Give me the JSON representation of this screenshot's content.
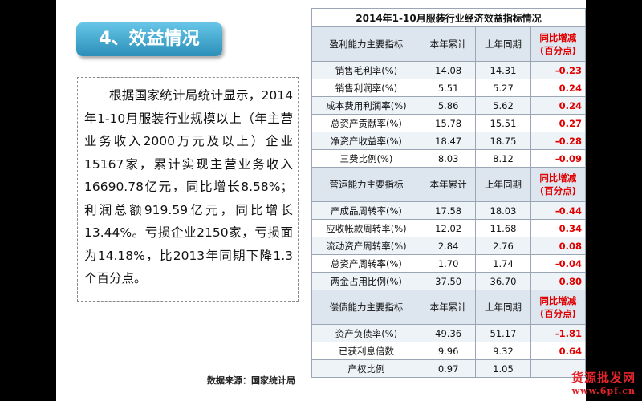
{
  "slide": {
    "title": "4、效益情况",
    "paragraph": "根据国家统计局统计显示，2014年1-10月服装行业规模以上（年主营业务收入2000万元及以上）企业15167家，累计实现主营业务收入16690.78亿元，同比增长8.58%；利润总额919.59亿元，同比增长13.44%。亏损企业2150家，亏损面为14.18%，比2013年同期下降1.3个百分点。",
    "source": "数据来源：国家统计局"
  },
  "table": {
    "title": "2014年1-10月服装行业经济效益指标情况",
    "sections": [
      {
        "header": [
          "盈利能力主要指标",
          "本年累计",
          "上年同期",
          "同比增减\n(百分点)"
        ],
        "rows": [
          [
            "销售毛利率(%)",
            "14.08",
            "14.31",
            "-0.23"
          ],
          [
            "销售利润率(%)",
            "5.51",
            "5.27",
            "0.24"
          ],
          [
            "成本费用利润率(%)",
            "5.86",
            "5.62",
            "0.24"
          ],
          [
            "总资产贡献率(%)",
            "15.78",
            "15.51",
            "0.27"
          ],
          [
            "净资产收益率(%)",
            "18.47",
            "18.75",
            "-0.28"
          ],
          [
            "三费比例(%)",
            "8.03",
            "8.12",
            "-0.09"
          ]
        ]
      },
      {
        "header": [
          "营运能力主要指标",
          "本年累计",
          "上年同期",
          "同比增减\n(百分点)"
        ],
        "rows": [
          [
            "产成品周转率(%)",
            "17.58",
            "18.03",
            "-0.44"
          ],
          [
            "应收帐款周转率(%)",
            "12.02",
            "11.68",
            "0.34"
          ],
          [
            "流动资产周转率(%)",
            "2.84",
            "2.76",
            "0.08"
          ],
          [
            "总资产周转率(%)",
            "1.70",
            "1.74",
            "-0.04"
          ],
          [
            "两金占用比例(%)",
            "37.50",
            "36.70",
            "0.80"
          ]
        ]
      },
      {
        "header": [
          "偿债能力主要指标",
          "本年累计",
          "上年同期",
          "同比增减\n(百分点)"
        ],
        "rows": [
          [
            "资产负债率(%)",
            "49.36",
            "51.17",
            "-1.81"
          ],
          [
            "已获利息倍数",
            "9.96",
            "9.32",
            "0.64"
          ],
          [
            "产权比例",
            "0.97",
            "1.05",
            ""
          ]
        ]
      }
    ]
  },
  "watermark": {
    "text": "货源批发网",
    "url": "www.6pf.cn"
  },
  "colors": {
    "title_gradient_top": "#67c6e8",
    "title_gradient_bottom": "#2b8fb8",
    "change_red": "#e00000",
    "header_bg": "#dde5ee",
    "row_bg": "#eef3f8"
  }
}
